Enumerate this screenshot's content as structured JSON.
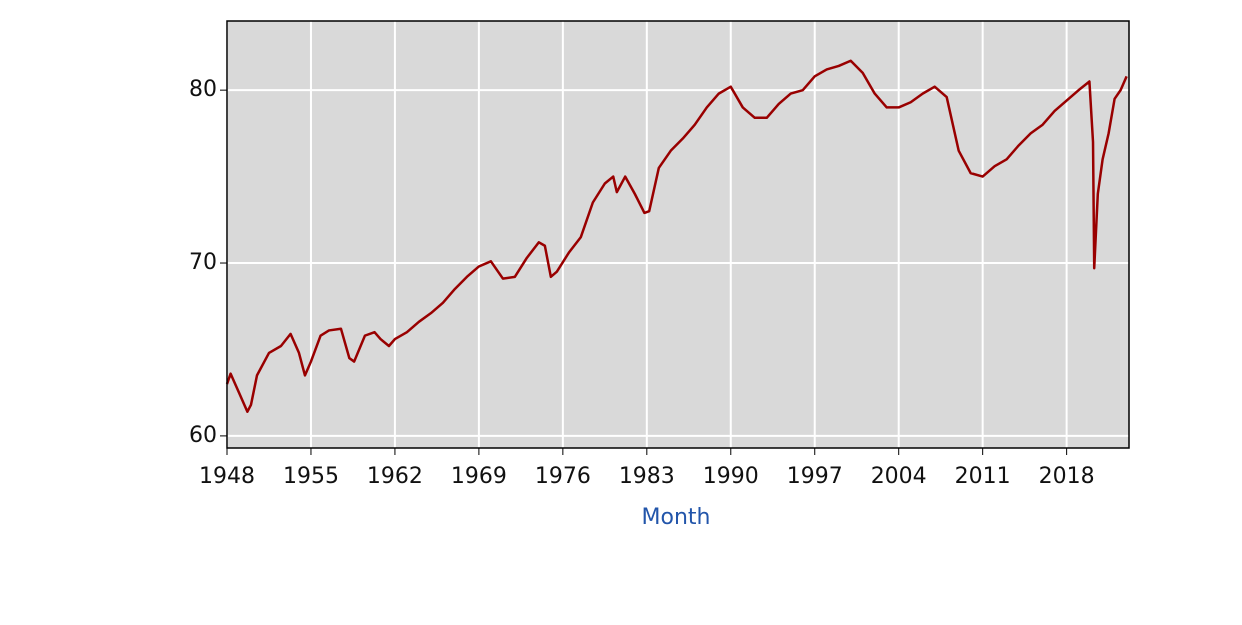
{
  "chart_data": {
    "type": "line",
    "x_label": "Month",
    "color": "#990000",
    "grid": true,
    "x": [
      1948,
      1948.3,
      1949,
      1949.7,
      1950,
      1950.5,
      1951.5,
      1952.5,
      1953.3,
      1954,
      1954.5,
      1955,
      1955.8,
      1956.5,
      1957.5,
      1958.2,
      1958.6,
      1959.5,
      1960.3,
      1960.8,
      1961.5,
      1962,
      1963,
      1964,
      1965,
      1966,
      1967,
      1968,
      1969,
      1970,
      1970.5,
      1971,
      1972,
      1973,
      1974,
      1974.5,
      1975,
      1975.5,
      1976.5,
      1977.5,
      1978.5,
      1979.5,
      1980.2,
      1980.5,
      1981.2,
      1982,
      1982.8,
      1983.2,
      1984,
      1985,
      1986,
      1987,
      1988,
      1989,
      1990,
      1991,
      1992,
      1993,
      1994,
      1995,
      1996,
      1997,
      1998,
      1999,
      2000,
      2001,
      2002,
      2003,
      2004,
      2005,
      2006,
      2007,
      2008,
      2009,
      2010,
      2011,
      2012,
      2013,
      2014,
      2015,
      2016,
      2017,
      2018,
      2019,
      2019.9,
      2020.2,
      2020.3,
      2020.6,
      2021,
      2021.5,
      2022,
      2022.5,
      2023
    ],
    "values": [
      63,
      63.6,
      62.5,
      61.4,
      61.8,
      63.5,
      64.8,
      65.2,
      65.9,
      64.8,
      63.5,
      64.3,
      65.8,
      66.1,
      66.2,
      64.5,
      64.3,
      65.8,
      66.0,
      65.6,
      65.2,
      65.6,
      66.0,
      66.6,
      67.1,
      67.7,
      68.5,
      69.2,
      69.8,
      70.1,
      69.6,
      69.1,
      69.2,
      70.3,
      71.2,
      71.0,
      69.2,
      69.5,
      70.6,
      71.5,
      73.5,
      74.6,
      75.0,
      74.1,
      75.0,
      74.0,
      72.9,
      73.0,
      75.5,
      76.5,
      77.2,
      78.0,
      79.0,
      79.8,
      80.2,
      79.0,
      78.4,
      78.4,
      79.2,
      79.8,
      80.0,
      80.8,
      81.2,
      81.4,
      81.7,
      81.0,
      79.8,
      79.0,
      79.0,
      79.3,
      79.8,
      80.2,
      79.6,
      76.5,
      75.2,
      75.0,
      75.6,
      76.0,
      76.8,
      77.5,
      78.0,
      78.8,
      79.4,
      80.0,
      80.5,
      77.0,
      69.7,
      74.0,
      76.0,
      77.5,
      79.5,
      80.0,
      80.8
    ],
    "xlim": [
      1948,
      2023.2
    ],
    "xticks": [
      1948,
      1955,
      1962,
      1969,
      1976,
      1983,
      1990,
      1997,
      2004,
      2011,
      2018
    ],
    "ylim": [
      59.3,
      84
    ],
    "yticks": [
      60,
      70,
      80
    ]
  }
}
